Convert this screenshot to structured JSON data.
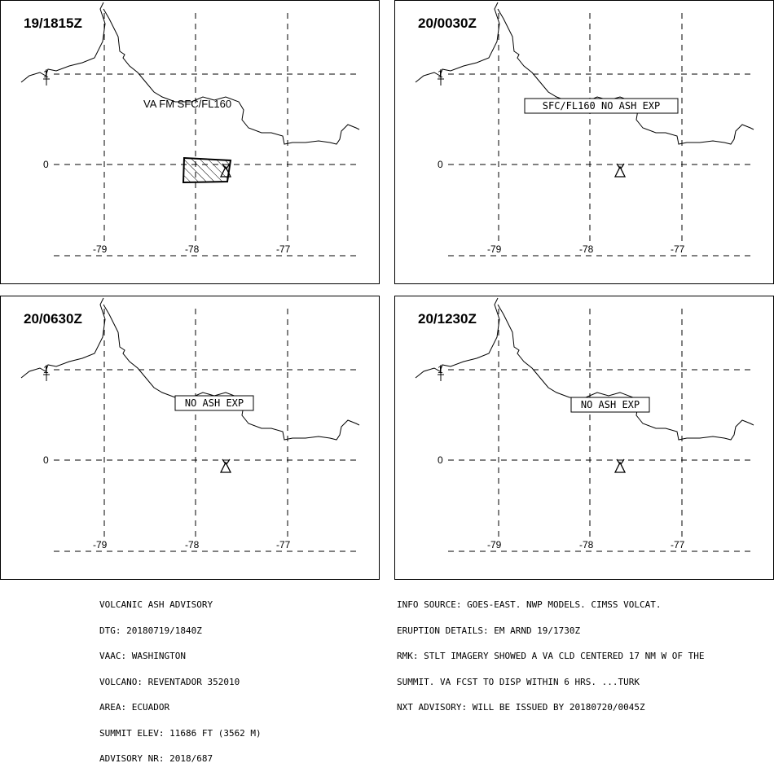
{
  "panels": [
    {
      "time": "19/1815Z",
      "label": "VA FM SFC/FL160",
      "label_boxed": false,
      "ash_area": true
    },
    {
      "time": "20/0030Z",
      "label": "SFC/FL160 NO ASH EXP",
      "label_boxed": true,
      "ash_area": false
    },
    {
      "time": "20/0630Z",
      "label": "NO ASH EXP",
      "label_boxed": true,
      "ash_area": false
    },
    {
      "time": "20/1230Z",
      "label": "NO ASH EXP",
      "label_boxed": true,
      "ash_area": false
    }
  ],
  "axes": {
    "lon_labels": [
      "-79",
      "-78",
      "-77"
    ],
    "lat_labels": [
      "1",
      "0"
    ]
  },
  "advisory": {
    "title": "VOLCANIC ASH ADVISORY",
    "dtg": "DTG: 20180719/1840Z",
    "vaac": "VAAC: WASHINGTON",
    "volcano": "VOLCANO: REVENTADOR 352010",
    "area": "AREA: ECUADOR",
    "summit_elev": "SUMMIT ELEV: 11686 FT (3562 M)",
    "advisory_nr": "ADVISORY NR: 2018/687"
  },
  "info": {
    "info_source": "INFO SOURCE: GOES-EAST. NWP MODELS. CIMSS VOLCAT.",
    "eruption_details": "ERUPTION DETAILS: EM ARND 19/1730Z",
    "rmk_1": "RMK: STLT IMAGERY SHOWED A VA CLD CENTERED 17 NM W OF THE",
    "rmk_2": "SUMMIT. VA FCST TO DISP WITHIN 6 HRS. ...TURK",
    "nxt_advisory": "NXT ADVISORY: WILL BE ISSUED BY 20180720/0045Z"
  }
}
